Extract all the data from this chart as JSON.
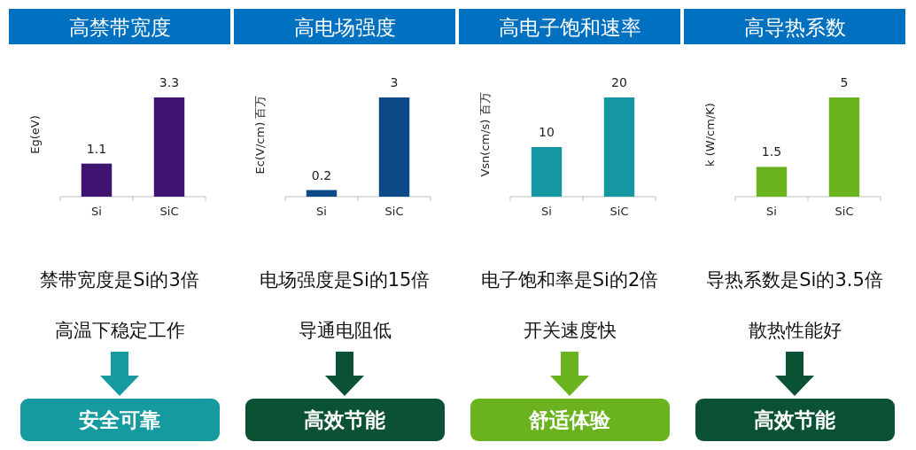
{
  "chart_data": [
    {
      "type": "bar",
      "title": "高禁带宽度",
      "ylabel": "Eg(eV)",
      "categories": [
        "Si",
        "SiC"
      ],
      "values": [
        1.1,
        3.3
      ],
      "color": "#3f1471",
      "data_labels": true,
      "annotations": [
        "禁带宽度是Si的3倍",
        "高温下稳定工作",
        "安全可靠"
      ]
    },
    {
      "type": "bar",
      "title": "高电场强度",
      "ylabel": "Ec(V/cm) 百万",
      "categories": [
        "Si",
        "SiC"
      ],
      "values": [
        0.2,
        3
      ],
      "color": "#0b4a86",
      "data_labels": true,
      "annotations": [
        "电场强度是Si的15倍",
        "导通电阻低",
        "高效节能"
      ]
    },
    {
      "type": "bar",
      "title": "高电子饱和速率",
      "ylabel": "Vsn(cm/s) 百万",
      "categories": [
        "Si",
        "SiC"
      ],
      "values": [
        10,
        20
      ],
      "color": "#1497a3",
      "data_labels": true,
      "annotations": [
        "电子饱和率是Si的2倍",
        "开关速度快",
        "舒适体验"
      ]
    },
    {
      "type": "bar",
      "title": "高导热系数",
      "ylabel": "k (W/cm/K)",
      "categories": [
        "Si",
        "SiC"
      ],
      "values": [
        1.5,
        5
      ],
      "color": "#6ab31f",
      "data_labels": true,
      "annotations": [
        "导热系数是Si的3.5倍",
        "散热性能好",
        "高效节能"
      ]
    }
  ]
}
